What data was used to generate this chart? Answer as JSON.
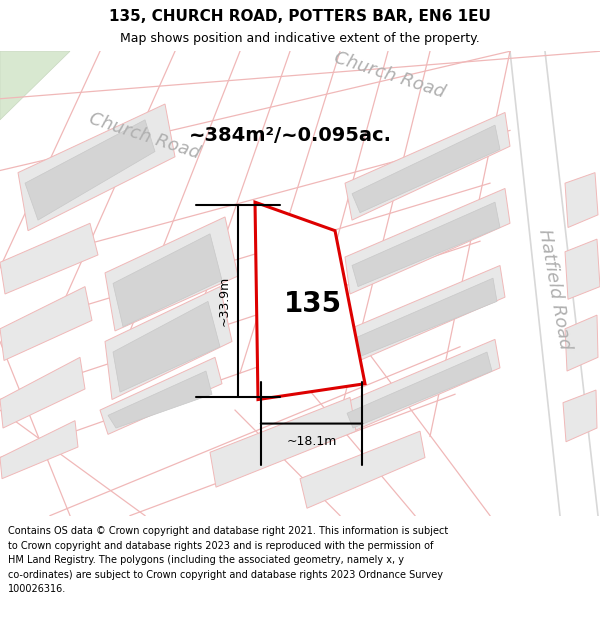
{
  "title_line1": "135, CHURCH ROAD, POTTERS BAR, EN6 1EU",
  "title_line2": "Map shows position and indicative extent of the property.",
  "footer_text": "Contains OS data © Crown copyright and database right 2021. This information is subject to Crown copyright and database rights 2023 and is reproduced with the permission of HM Land Registry. The polygons (including the associated geometry, namely x, y co-ordinates) are subject to Crown copyright and database rights 2023 Ordnance Survey 100026316.",
  "area_label": "~384m²/~0.095ac.",
  "number_label": "135",
  "dim_height": "~33.9m",
  "dim_width": "~18.1m",
  "road_label_left": "Church Road",
  "road_label_right": "Church Road",
  "road_label_side": "Hatfield Road",
  "bg_color": "#f5f3f0",
  "block_outer": "#e8e8e8",
  "block_inner": "#d4d4d4",
  "road_line_color": "#f0b8b8",
  "hatfield_line_color": "#d8d8d8",
  "plot_line_color": "#dd0000",
  "plot_fill": "#ffffff",
  "green_fill": "#d8e8d0",
  "road_label_color": "#b0b0b0",
  "title_fontsize": 11,
  "subtitle_fontsize": 9,
  "area_fontsize": 14,
  "number_fontsize": 20,
  "dim_fontsize": 9,
  "road_label_fontsize": 13,
  "footer_fontsize": 7
}
